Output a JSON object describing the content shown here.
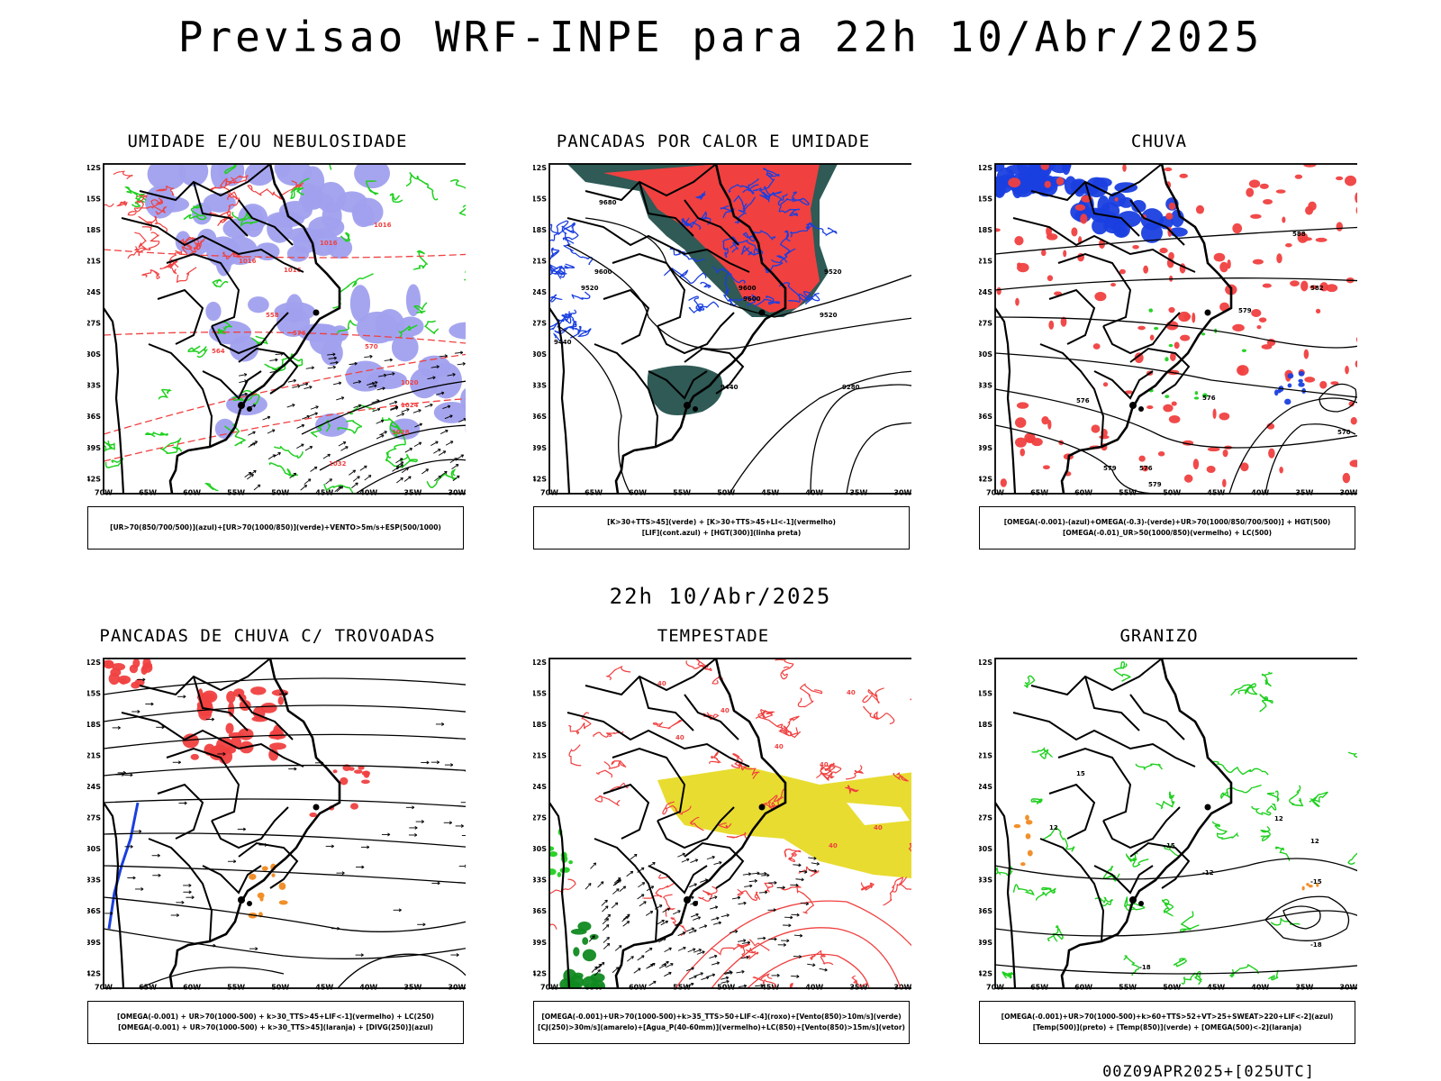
{
  "title": "Previsao WRF-INPE  para 22h 10/Abr/2025",
  "subtitle": "22h 10/Abr/2025",
  "footer": "00Z09APR2025+[025UTC]",
  "axes": {
    "lat_labels": [
      "12S",
      "15S",
      "18S",
      "21S",
      "24S",
      "27S",
      "30S",
      "33S",
      "36S",
      "39S",
      "42S"
    ],
    "lon_labels": [
      "70W",
      "65W",
      "60W",
      "55W",
      "50W",
      "45W",
      "40W",
      "35W",
      "30W"
    ]
  },
  "colors": {
    "red": "#f04040",
    "blue": "#1a3fe0",
    "green": "#1fd01f",
    "lavender": "#a0a0ee",
    "darkteal": "#2f5a55",
    "yellow": "#e8dc30",
    "orange": "#f08a20",
    "darkgreen": "#108a20"
  },
  "panels": [
    {
      "title": "UMIDADE E/OU NEBULOSIDADE",
      "legend": [
        "[UR>70(850/700/500)](azul)+[UR>70(1000/850)](verde)+VENTO>5m/s+ESP(500/1000)"
      ],
      "contour_labels": [
        "1016",
        "1016",
        "1016",
        "1016",
        "1020",
        "1024",
        "1028",
        "1032",
        "576",
        "570",
        "564",
        "558"
      ]
    },
    {
      "title": "PANCADAS POR CALOR E UMIDADE",
      "legend": [
        "[K>30+TTS>45](verde) + [K>30+TTS>45+LI<-1](vermelho)",
        "[LIF](cont.azul) + [HGT(300)](linha preta)"
      ],
      "contour_labels": [
        "9680",
        "9600",
        "9520",
        "9440",
        "9600",
        "9520",
        "9440",
        "9280",
        "9520",
        "9600"
      ]
    },
    {
      "title": "CHUVA",
      "legend": [
        "[OMEGA(-0.001)-(azul)+OMEGA(-0.3)-(verde)+UR>70(1000/850/700/500)] + HGT(500)",
        "[OMEGA(-0.01)_UR>50(1000/850)(vermelho) + LC(500)"
      ],
      "contour_labels": [
        "588",
        "582",
        "579",
        "576",
        "570",
        "576",
        "579",
        "576",
        "579"
      ]
    },
    {
      "title": "PANCADAS DE CHUVA C/ TROVOADAS",
      "legend": [
        "[OMEGA(-0.001) + UR>70(1000-500) + k>30_TTS>45+LIF<-1](vermelho) + LC(250)",
        "[OMEGA(-0.001) + UR>70(1000-500) + k>30_TTS>45](laranja) + [DIVG(250)](azul)"
      ],
      "contour_labels": []
    },
    {
      "title": "TEMPESTADE",
      "legend": [
        "[OMEGA(-0.001)+UR>70(1000-500)+k>35_TTS>50+LIF<-4](roxo)+[Vento(850)>10m/s](verde)",
        "[CJ(250)>30m/s](amarelo)+[Agua_P(40-60mm)](vermelho)+LC(850)+[Vento(850)>15m/s](vetor)"
      ],
      "contour_labels": [
        "40",
        "40",
        "40",
        "40",
        "40",
        "40",
        "40",
        "40"
      ]
    },
    {
      "title": "GRANIZO",
      "legend": [
        "[OMEGA(-0.001)+UR>70(1000-500)+k>60+TTS>52+VT>25+SWEAT>220+LIF<-2](azul)",
        "[Temp(500)](preto) + [Temp(850)](verde) + [OMEGA(500)<-2](laranja)"
      ],
      "contour_labels": [
        "12",
        "15",
        "12",
        "-12",
        "-15",
        "-18",
        "-18",
        "12",
        "15"
      ]
    }
  ]
}
